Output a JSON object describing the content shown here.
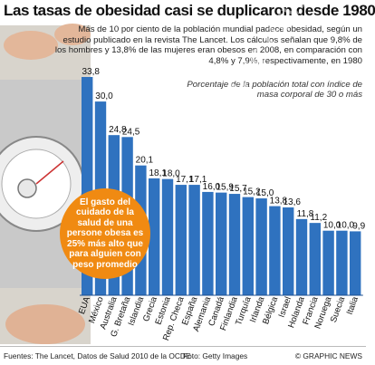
{
  "title": "Las tasas de obesidad casi se duplicaron desde 1980",
  "intro": "Más de 10 por ciento de la población mundial padece obesidad, según un estudio publicado en la revista The Lancet. Los cálculos señalan que 9,8% de los hombres y 13,8% de las mujeres eran obesos en 2008, en comparación con 4,8% y 7,9%, respectivamente, en 1980",
  "bubble": "El gasto del cuidado de la salud de una persone obesa es 25% más alto que para alguien con peso promedio",
  "footer": {
    "sources": "Fuentes: The Lancet, Datos de Salud 2010 de la OCDE",
    "credit": "Foto: Getty Images",
    "publisher": "© GRAPHIC NEWS"
  },
  "watermark": "GRAPHIC NEWS",
  "colors": {
    "bar": "#2f72bf",
    "bubble": "#f08a12",
    "axis": "#1d4f8f"
  },
  "chart_data": {
    "type": "bar",
    "title": "Las tasas de obesidad casi se duplicaron desde 1980",
    "subtitle": "Porcentaje de la población total con índice de masa corporal de 30 o más",
    "categories": [
      "EUA",
      "México",
      "Australia",
      "G. Bretaña",
      "Islandia",
      "Grecia",
      "Estonia",
      "Rep. Checa",
      "España",
      "Alemania",
      "Canadá",
      "Finlandia",
      "Turquía",
      "Irlanda",
      "Bélgica",
      "Israel",
      "Holanda",
      "Francia",
      "Noruega",
      "Suecia",
      "Italia"
    ],
    "values": [
      33.8,
      30.0,
      24.8,
      24.5,
      20.1,
      18.1,
      18.0,
      17.1,
      17.1,
      16.0,
      15.9,
      15.7,
      15.2,
      15.0,
      13.8,
      13.6,
      11.8,
      11.2,
      10.0,
      10.0,
      9.9
    ],
    "value_labels": [
      "33,8",
      "30,0",
      "24,8",
      "24,5",
      "20,1",
      "18,1",
      "18,0",
      "17,1",
      "17,1",
      "16,0",
      "15,9",
      "15,7",
      "15,2",
      "15,0",
      "13,8",
      "13,6",
      "11,8",
      "11,2",
      "10,0",
      "10,0",
      "9,9"
    ],
    "ylim": [
      0,
      36
    ],
    "grid": false,
    "legend": "none"
  }
}
